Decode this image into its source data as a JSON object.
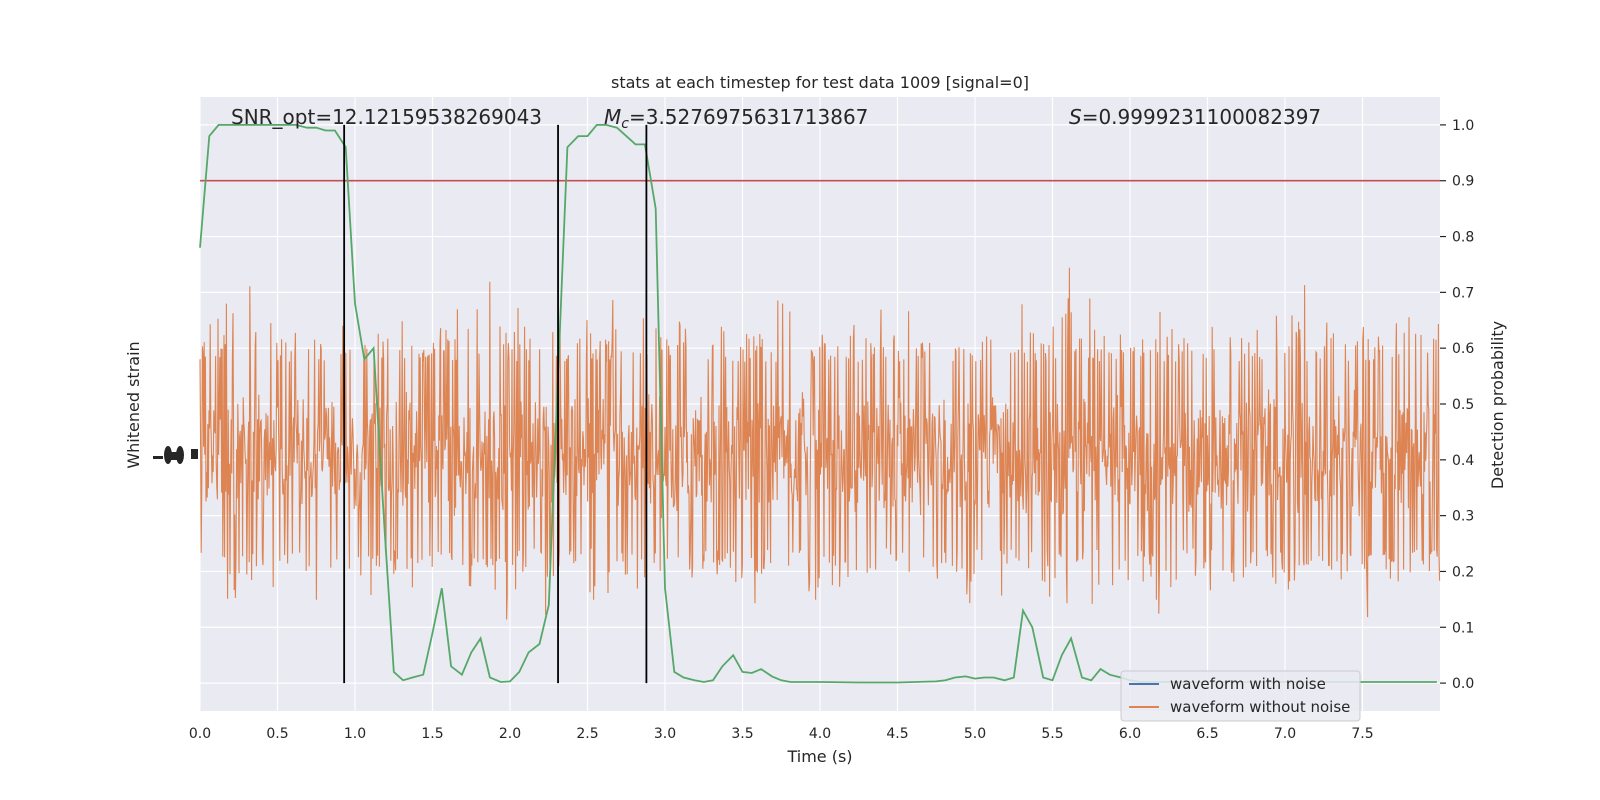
{
  "chart_data": {
    "type": "line",
    "title": "stats at each timestep for test data 1009 [signal=0]",
    "xlabel": "Time (s)",
    "ylabel_left": "Whitened strain",
    "ylabel_right": "Detection probability",
    "xlim": [
      0.0,
      8.0
    ],
    "ylim_right": [
      -0.05,
      1.05
    ],
    "x_ticks": [
      "0.0",
      "0.5",
      "1.0",
      "1.5",
      "2.0",
      "2.5",
      "3.0",
      "3.5",
      "4.0",
      "4.5",
      "5.0",
      "5.5",
      "6.0",
      "6.5",
      "7.0",
      "7.5"
    ],
    "y_right_ticks": [
      "0.0",
      "0.1",
      "0.2",
      "0.3",
      "0.4",
      "0.5",
      "0.6",
      "0.7",
      "0.8",
      "0.9",
      "1.0"
    ],
    "annotations": {
      "snr": "SNR_opt=12.12159538269043",
      "mc_prefix": "M",
      "mc_sub": "c",
      "mc_value": "=3.5276975631713867",
      "s_prefix": "S",
      "s_value": "=0.9999231100082397"
    },
    "legend": {
      "location": "lower right",
      "entries": [
        {
          "label": "waveform with noise",
          "color": "#4c72b0"
        },
        {
          "label": "waveform without noise",
          "color": "#dd8452"
        }
      ]
    },
    "threshold": {
      "y": 0.9,
      "color": "#c44e52"
    },
    "vertical_lines_x": [
      0.93,
      2.31,
      2.88
    ],
    "detection_probability": {
      "color": "#55a868",
      "x": [
        0.0,
        0.06,
        0.12,
        0.19,
        0.25,
        0.31,
        0.37,
        0.44,
        0.5,
        0.56,
        0.62,
        0.69,
        0.75,
        0.81,
        0.87,
        0.94,
        1.0,
        1.06,
        1.12,
        1.19,
        1.25,
        1.31,
        1.37,
        1.44,
        1.5,
        1.56,
        1.62,
        1.69,
        1.75,
        1.81,
        1.87,
        1.94,
        2.0,
        2.06,
        2.12,
        2.19,
        2.25,
        2.31,
        2.37,
        2.44,
        2.5,
        2.56,
        2.62,
        2.69,
        2.75,
        2.81,
        2.87,
        2.94,
        3.0,
        3.06,
        3.12,
        3.19,
        3.25,
        3.31,
        3.37,
        3.44,
        3.5,
        3.56,
        3.62,
        3.69,
        3.75,
        3.81,
        3.87,
        4.0,
        4.25,
        4.5,
        4.75,
        4.81,
        4.87,
        4.94,
        5.0,
        5.06,
        5.12,
        5.19,
        5.25,
        5.31,
        5.37,
        5.44,
        5.5,
        5.56,
        5.62,
        5.69,
        5.75,
        5.81,
        5.87,
        5.94,
        6.0,
        6.06,
        6.25,
        6.5,
        6.75,
        7.0,
        7.25,
        7.5,
        7.75,
        7.98
      ],
      "y": [
        0.78,
        0.98,
        1.0,
        1.0,
        1.0,
        1.0,
        1.0,
        1.0,
        1.0,
        1.0,
        1.0,
        0.995,
        0.995,
        0.99,
        0.99,
        0.96,
        0.68,
        0.58,
        0.6,
        0.28,
        0.02,
        0.005,
        0.01,
        0.015,
        0.09,
        0.17,
        0.03,
        0.015,
        0.055,
        0.08,
        0.01,
        0.002,
        0.003,
        0.02,
        0.055,
        0.07,
        0.14,
        0.55,
        0.96,
        0.98,
        0.98,
        1.0,
        1.0,
        0.995,
        0.98,
        0.965,
        0.965,
        0.85,
        0.17,
        0.02,
        0.01,
        0.005,
        0.002,
        0.005,
        0.03,
        0.05,
        0.02,
        0.018,
        0.025,
        0.012,
        0.005,
        0.002,
        0.002,
        0.002,
        0.001,
        0.001,
        0.003,
        0.005,
        0.01,
        0.012,
        0.008,
        0.01,
        0.01,
        0.005,
        0.01,
        0.13,
        0.1,
        0.01,
        0.005,
        0.05,
        0.08,
        0.01,
        0.005,
        0.025,
        0.015,
        0.01,
        0.005,
        0.002,
        0.002,
        0.002,
        0.002,
        0.002,
        0.002,
        0.002,
        0.002,
        0.002
      ]
    }
  }
}
